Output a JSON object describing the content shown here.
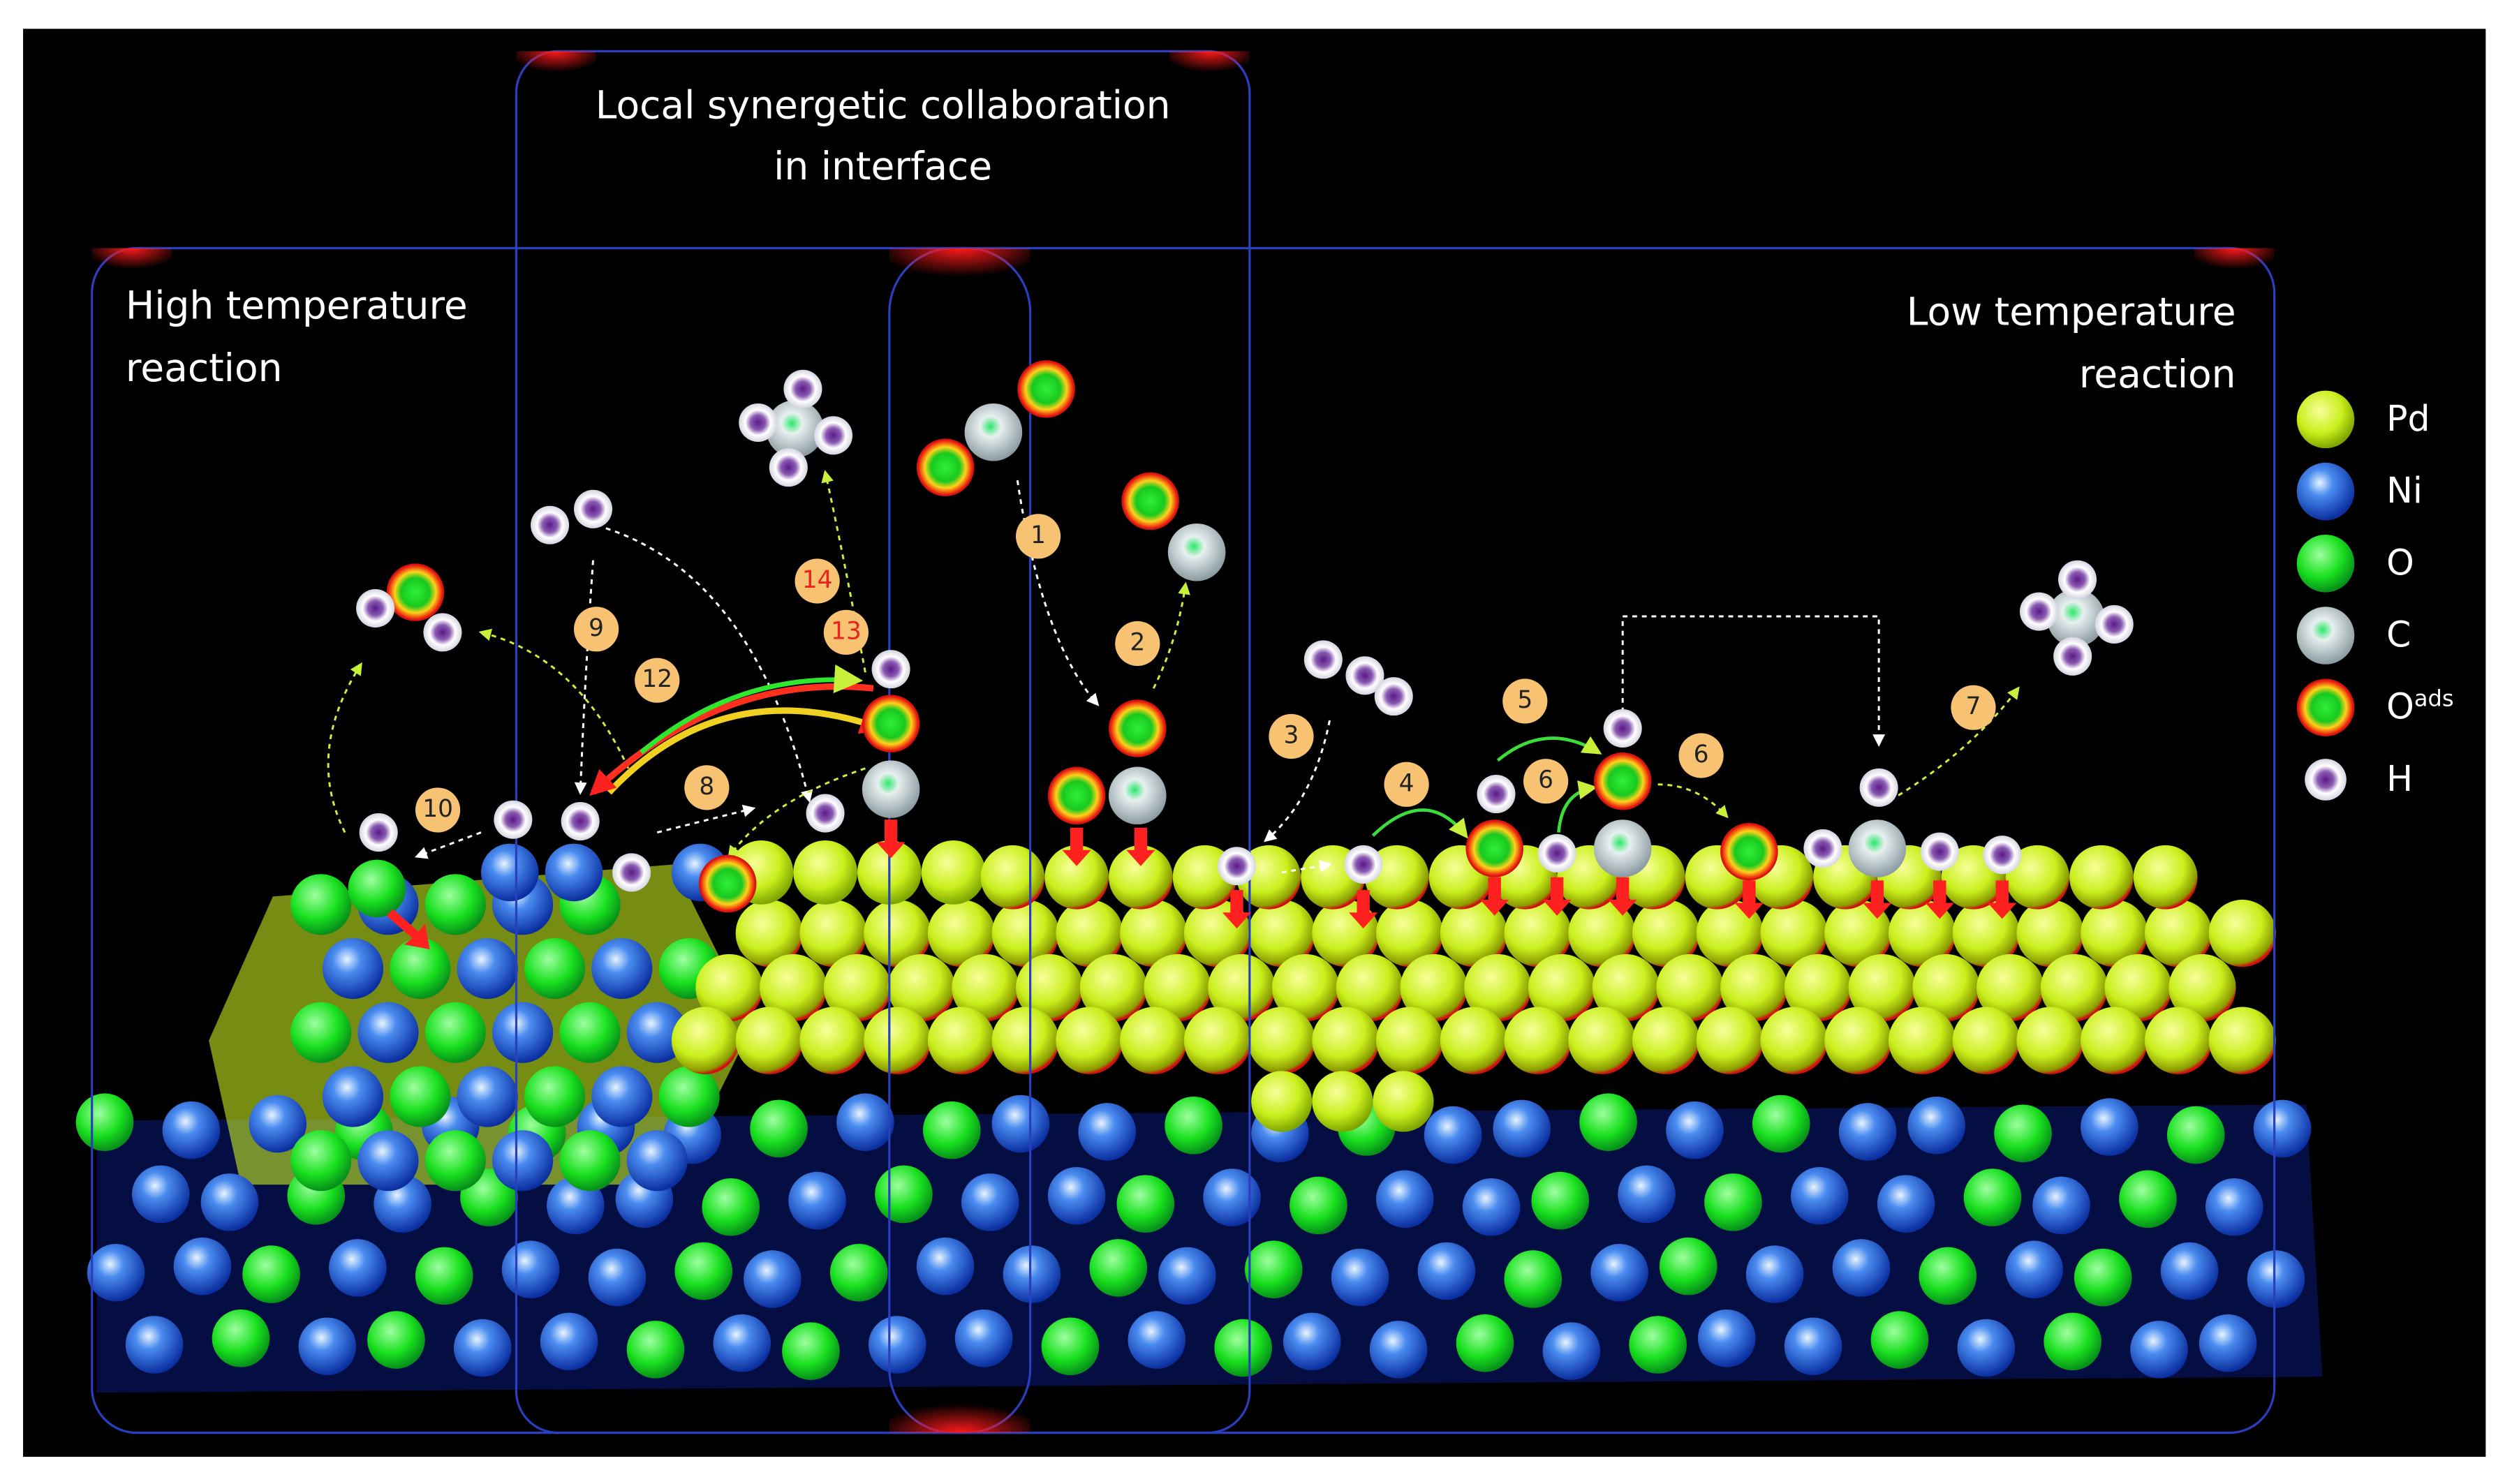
{
  "regions": {
    "interface": [
      "Local synergetic collaboration",
      "in interface"
    ],
    "high_temperature": [
      "High temperature",
      "reaction"
    ],
    "low_temperature": [
      "Low temperature",
      "reaction"
    ]
  },
  "legend": [
    {
      "label": "Pd"
    },
    {
      "label": "Ni"
    },
    {
      "label": "O"
    },
    {
      "label": "C"
    },
    {
      "label": "O",
      "sup": "ads"
    },
    {
      "label": "H"
    }
  ],
  "steps": [
    "1",
    "2",
    "3",
    "4",
    "5",
    "6",
    "6",
    "7",
    "8",
    "9",
    "10",
    "12",
    "13",
    "14"
  ]
}
